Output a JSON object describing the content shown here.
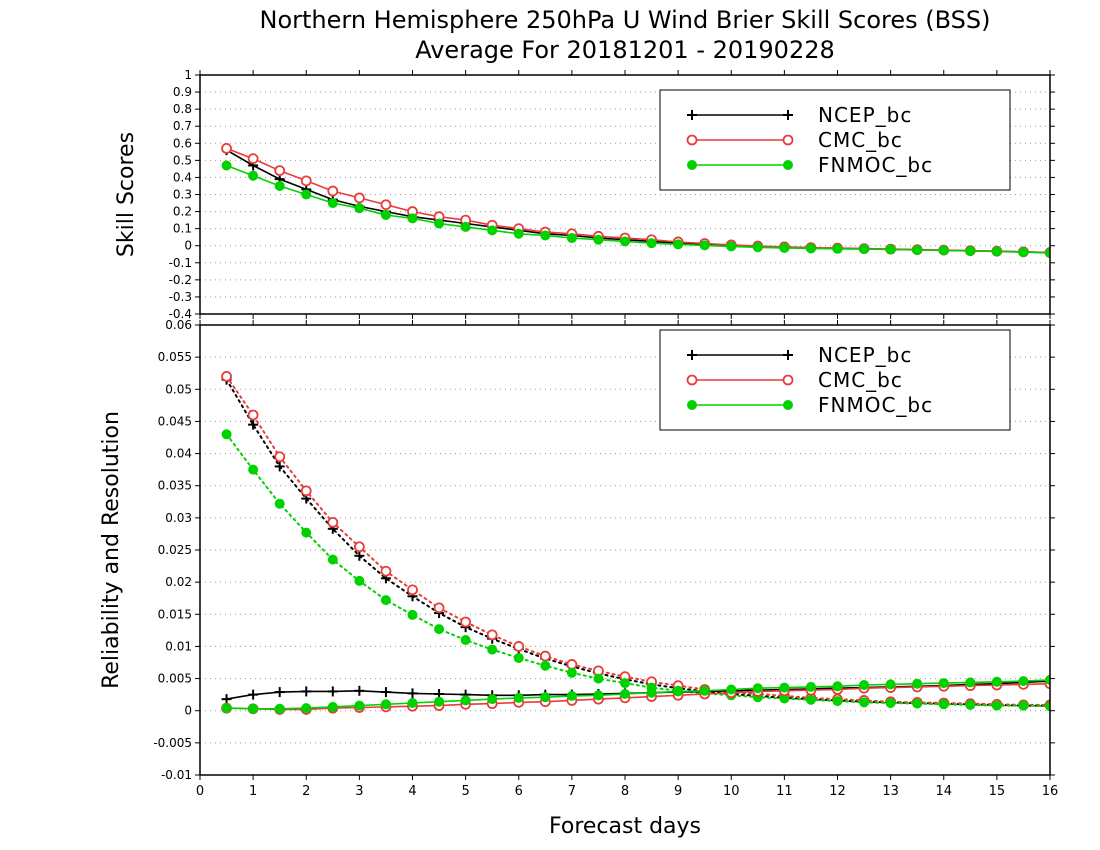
{
  "title_line1": "Northern Hemisphere 250hPa U Wind Brier Skill Scores (BSS)",
  "title_line2": "Average For 20181201 - 20190228",
  "colors": {
    "NCEP_bc": "#000000",
    "CMC_bc": "#e83c3c",
    "FNMOC_bc": "#00d200"
  },
  "chart_data": [
    {
      "type": "line",
      "title": "",
      "xlabel": "",
      "ylabel": "Skill Scores",
      "xlim": [
        0,
        16
      ],
      "ylim": [
        -0.4,
        1
      ],
      "x_ticks": [
        "0",
        "1",
        "2",
        "3",
        "4",
        "5",
        "6",
        "7",
        "8",
        "9",
        "10",
        "11",
        "12",
        "13",
        "14",
        "15",
        "16"
      ],
      "y_ticks": [
        "-0.4",
        "-0.3",
        "-0.2",
        "-0.1",
        "0",
        "0.1",
        "0.2",
        "0.3",
        "0.4",
        "0.5",
        "0.6",
        "0.7",
        "0.8",
        "0.9",
        "1"
      ],
      "grid": true,
      "legend_position": "top-right",
      "x": [
        0.5,
        1,
        1.5,
        2,
        2.5,
        3,
        3.5,
        4,
        4.5,
        5,
        5.5,
        6,
        6.5,
        7,
        7.5,
        8,
        8.5,
        9,
        9.5,
        10,
        10.5,
        11,
        11.5,
        12,
        12.5,
        13,
        13.5,
        14,
        14.5,
        15,
        15.5,
        16
      ],
      "series": [
        {
          "name": "NCEP_bc",
          "style": "solid",
          "marker": "plus",
          "values": [
            0.56,
            0.47,
            0.39,
            0.33,
            0.27,
            0.23,
            0.2,
            0.17,
            0.15,
            0.13,
            0.11,
            0.09,
            0.07,
            0.06,
            0.045,
            0.035,
            0.025,
            0.015,
            0.008,
            0.002,
            -0.004,
            -0.008,
            -0.012,
            -0.015,
            -0.018,
            -0.021,
            -0.024,
            -0.027,
            -0.03,
            -0.033,
            -0.036,
            -0.04
          ]
        },
        {
          "name": "CMC_bc",
          "style": "solid",
          "marker": "open-circle",
          "values": [
            0.57,
            0.51,
            0.44,
            0.38,
            0.32,
            0.28,
            0.24,
            0.2,
            0.17,
            0.15,
            0.12,
            0.1,
            0.08,
            0.07,
            0.055,
            0.045,
            0.035,
            0.022,
            0.013,
            0.005,
            -0.002,
            -0.007,
            -0.011,
            -0.014,
            -0.017,
            -0.02,
            -0.023,
            -0.026,
            -0.029,
            -0.032,
            -0.036,
            -0.04
          ]
        },
        {
          "name": "FNMOC_bc",
          "style": "solid",
          "marker": "filled-circle",
          "values": [
            0.47,
            0.41,
            0.35,
            0.3,
            0.25,
            0.22,
            0.18,
            0.16,
            0.13,
            0.11,
            0.09,
            0.07,
            0.06,
            0.045,
            0.035,
            0.025,
            0.015,
            0.008,
            0.002,
            -0.004,
            -0.009,
            -0.013,
            -0.016,
            -0.018,
            -0.02,
            -0.022,
            -0.025,
            -0.028,
            -0.031,
            -0.034,
            -0.038,
            -0.042
          ]
        }
      ]
    },
    {
      "type": "line",
      "title": "",
      "xlabel": "Forecast days",
      "ylabel": "Reliability and Resolution",
      "xlim": [
        0,
        16
      ],
      "ylim": [
        -0.01,
        0.06
      ],
      "x_ticks": [
        "0",
        "1",
        "2",
        "3",
        "4",
        "5",
        "6",
        "7",
        "8",
        "9",
        "10",
        "11",
        "12",
        "13",
        "14",
        "15",
        "16"
      ],
      "y_ticks": [
        "-0.01",
        "-0.005",
        "0",
        "0.005",
        "0.01",
        "0.015",
        "0.02",
        "0.025",
        "0.03",
        "0.035",
        "0.04",
        "0.045",
        "0.05",
        "0.055",
        "0.06"
      ],
      "grid": true,
      "legend_position": "top-right",
      "x": [
        0.5,
        1,
        1.5,
        2,
        2.5,
        3,
        3.5,
        4,
        4.5,
        5,
        5.5,
        6,
        6.5,
        7,
        7.5,
        8,
        8.5,
        9,
        9.5,
        10,
        10.5,
        11,
        11.5,
        12,
        12.5,
        13,
        13.5,
        14,
        14.5,
        15,
        15.5,
        16
      ],
      "series": [
        {
          "name": "NCEP_bc",
          "style": "dotted",
          "marker": "plus",
          "values": [
            0.0515,
            0.0445,
            0.038,
            0.033,
            0.0283,
            0.0241,
            0.0206,
            0.0178,
            0.0152,
            0.013,
            0.0112,
            0.0096,
            0.0081,
            0.0069,
            0.0058,
            0.0049,
            0.0041,
            0.0035,
            0.003,
            0.0026,
            0.0023,
            0.002,
            0.0018,
            0.0016,
            0.0014,
            0.0013,
            0.0012,
            0.0011,
            0.001,
            0.0009,
            0.0008,
            0.0008
          ]
        },
        {
          "name": "CMC_bc",
          "style": "dotted",
          "marker": "open-circle",
          "values": [
            0.052,
            0.046,
            0.0395,
            0.0342,
            0.0293,
            0.0255,
            0.0217,
            0.0188,
            0.016,
            0.0138,
            0.0118,
            0.01,
            0.0085,
            0.0072,
            0.0062,
            0.0053,
            0.0045,
            0.0039,
            0.0033,
            0.0029,
            0.0026,
            0.0023,
            0.002,
            0.0018,
            0.0016,
            0.0014,
            0.0013,
            0.0012,
            0.0011,
            0.001,
            0.0009,
            0.0009
          ]
        },
        {
          "name": "FNMOC_bc",
          "style": "dotted",
          "marker": "filled-circle",
          "values": [
            0.043,
            0.0375,
            0.0322,
            0.0277,
            0.0235,
            0.0202,
            0.0172,
            0.0149,
            0.0127,
            0.011,
            0.0095,
            0.0082,
            0.007,
            0.0059,
            0.005,
            0.0043,
            0.0036,
            0.0031,
            0.0027,
            0.0024,
            0.0021,
            0.0019,
            0.0017,
            0.0015,
            0.0013,
            0.0012,
            0.0011,
            0.001,
            0.0009,
            0.0008,
            0.0008,
            0.0007
          ]
        },
        {
          "name": "NCEP_bc",
          "style": "solid",
          "marker": "plus",
          "values": [
            0.0018,
            0.0025,
            0.0029,
            0.003,
            0.003,
            0.0031,
            0.0029,
            0.0027,
            0.0026,
            0.0025,
            0.0024,
            0.0024,
            0.0025,
            0.0025,
            0.0026,
            0.0027,
            0.0028,
            0.0029,
            0.003,
            0.0031,
            0.0032,
            0.0033,
            0.0034,
            0.0035,
            0.0036,
            0.0037,
            0.0038,
            0.0039,
            0.0041,
            0.0042,
            0.0044,
            0.0046
          ]
        },
        {
          "name": "CMC_bc",
          "style": "solid",
          "marker": "open-circle",
          "values": [
            0.0004,
            0.0003,
            0.0002,
            0.0002,
            0.0004,
            0.0005,
            0.0006,
            0.0007,
            0.0008,
            0.001,
            0.0011,
            0.0013,
            0.0014,
            0.0016,
            0.0018,
            0.002,
            0.0022,
            0.0024,
            0.0026,
            0.0028,
            0.003,
            0.0031,
            0.0032,
            0.0033,
            0.0035,
            0.0036,
            0.0037,
            0.0038,
            0.0039,
            0.004,
            0.0041,
            0.0042
          ]
        },
        {
          "name": "FNMOC_bc",
          "style": "solid",
          "marker": "filled-circle",
          "values": [
            0.0004,
            0.0003,
            0.0003,
            0.0004,
            0.0006,
            0.0008,
            0.001,
            0.0012,
            0.0014,
            0.0016,
            0.0018,
            0.002,
            0.0021,
            0.0023,
            0.0024,
            0.0026,
            0.0028,
            0.003,
            0.0031,
            0.0033,
            0.0035,
            0.0036,
            0.0037,
            0.0038,
            0.004,
            0.0041,
            0.0042,
            0.0043,
            0.0044,
            0.0045,
            0.0046,
            0.0048
          ]
        }
      ]
    }
  ]
}
